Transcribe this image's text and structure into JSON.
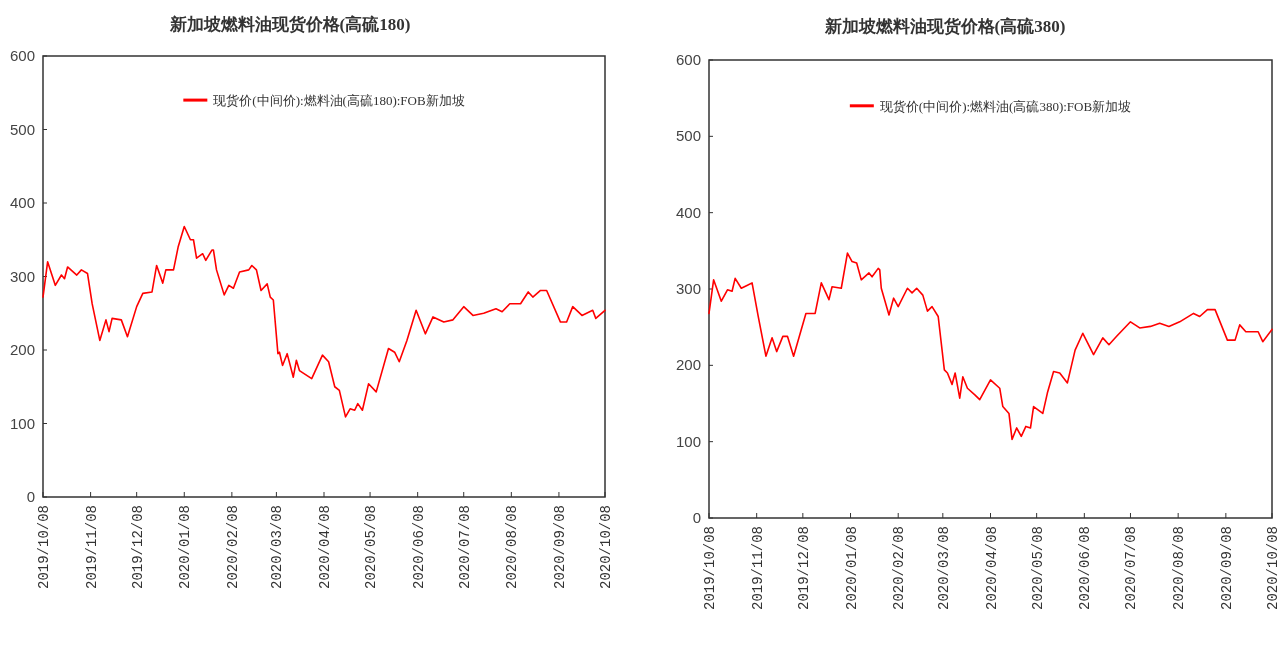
{
  "chart_data": [
    {
      "type": "line",
      "title": "新加坡燃料油现货价格(高硫180)",
      "legend": "top",
      "x": [
        "2019-10-08",
        "2019-10-11",
        "2019-10-16",
        "2019-10-20",
        "2019-10-22",
        "2019-10-24",
        "2019-10-30",
        "2019-11-02",
        "2019-11-06",
        "2019-11-09",
        "2019-11-14",
        "2019-11-18",
        "2019-11-20",
        "2019-11-22",
        "2019-11-28",
        "2019-12-02",
        "2019-12-08",
        "2019-12-12",
        "2019-12-18",
        "2019-12-21",
        "2019-12-25",
        "2019-12-27",
        "2020-01-01",
        "2020-01-04",
        "2020-01-08",
        "2020-01-12",
        "2020-01-14",
        "2020-01-16",
        "2020-01-20",
        "2020-01-22",
        "2020-01-26",
        "2020-01-27",
        "2020-01-29",
        "2020-02-03",
        "2020-02-06",
        "2020-02-09",
        "2020-02-13",
        "2020-02-19",
        "2020-02-21",
        "2020-02-24",
        "2020-02-27",
        "2020-03-02",
        "2020-03-04",
        "2020-03-06",
        "2020-03-09",
        "2020-03-10",
        "2020-03-12",
        "2020-03-15",
        "2020-03-19",
        "2020-03-21",
        "2020-03-23",
        "2020-03-31",
        "2020-04-07",
        "2020-04-11",
        "2020-04-15",
        "2020-04-18",
        "2020-04-22",
        "2020-04-25",
        "2020-04-28",
        "2020-04-30",
        "2020-05-03",
        "2020-05-07",
        "2020-05-12",
        "2020-05-20",
        "2020-05-24",
        "2020-05-27",
        "2020-06-01",
        "2020-06-07",
        "2020-06-13",
        "2020-06-18",
        "2020-06-25",
        "2020-07-01",
        "2020-07-08",
        "2020-07-14",
        "2020-07-21",
        "2020-07-29",
        "2020-08-02",
        "2020-08-07",
        "2020-08-14",
        "2020-08-19",
        "2020-08-22",
        "2020-08-27",
        "2020-08-31",
        "2020-09-09",
        "2020-09-13",
        "2020-09-17",
        "2020-09-23",
        "2020-09-30",
        "2020-10-02",
        "2020-10-08"
      ],
      "series": [
        {
          "name": "现货价(中间价):燃料油(高硫180):FOB新加坡",
          "color": "#ff0000",
          "values": [
            272,
            320,
            288,
            302,
            297,
            313,
            302,
            309,
            304,
            263,
            213,
            241,
            225,
            243,
            241,
            218,
            259,
            277,
            279,
            315,
            291,
            309,
            309,
            340,
            368,
            350,
            350,
            325,
            331,
            322,
            336,
            336,
            309,
            275,
            288,
            284,
            306,
            309,
            315,
            309,
            281,
            290,
            272,
            268,
            195,
            197,
            179,
            195,
            163,
            186,
            172,
            161,
            193,
            184,
            150,
            145,
            109,
            120,
            118,
            127,
            118,
            154,
            143,
            202,
            197,
            184,
            213,
            254,
            222,
            245,
            238,
            241,
            259,
            247,
            250,
            256,
            252,
            263,
            263,
            279,
            272,
            281,
            281,
            238,
            238,
            259,
            247,
            254,
            243,
            254
          ]
        }
      ],
      "xlim": [
        "2019-10-08",
        "2020-10-08"
      ],
      "xticks": [
        {
          "value": "2019-10-08",
          "label": "2019/10/08"
        },
        {
          "value": "2019-11-08",
          "label": "2019/11/08"
        },
        {
          "value": "2019-12-08",
          "label": "2019/12/08"
        },
        {
          "value": "2020-01-08",
          "label": "2020/01/08"
        },
        {
          "value": "2020-02-08",
          "label": "2020/02/08"
        },
        {
          "value": "2020-03-08",
          "label": "2020/03/08"
        },
        {
          "value": "2020-04-08",
          "label": "2020/04/08"
        },
        {
          "value": "2020-05-08",
          "label": "2020/05/08"
        },
        {
          "value": "2020-06-08",
          "label": "2020/06/08"
        },
        {
          "value": "2020-07-08",
          "label": "2020/07/08"
        },
        {
          "value": "2020-08-08",
          "label": "2020/08/08"
        },
        {
          "value": "2020-09-08",
          "label": "2020/09/08"
        },
        {
          "value": "2020-10-08",
          "label": "2020/10/08"
        }
      ],
      "ylim": [
        0,
        600
      ],
      "yticks": [
        0,
        100,
        200,
        300,
        400,
        500,
        600
      ]
    },
    {
      "type": "line",
      "title": "新加坡燃料油现货价格(高硫380)",
      "legend": "top",
      "x": [
        "2019-10-08",
        "2019-10-11",
        "2019-10-16",
        "2019-10-20",
        "2019-10-23",
        "2019-10-25",
        "2019-10-29",
        "2019-11-02",
        "2019-11-05",
        "2019-11-09",
        "2019-11-14",
        "2019-11-18",
        "2019-11-21",
        "2019-11-25",
        "2019-11-28",
        "2019-12-02",
        "2019-12-10",
        "2019-12-16",
        "2019-12-20",
        "2019-12-25",
        "2019-12-27",
        "2020-01-02",
        "2020-01-06",
        "2020-01-09",
        "2020-01-12",
        "2020-01-15",
        "2020-01-20",
        "2020-01-22",
        "2020-01-26",
        "2020-01-27",
        "2020-01-28",
        "2020-02-02",
        "2020-02-05",
        "2020-02-08",
        "2020-02-14",
        "2020-02-17",
        "2020-02-20",
        "2020-02-24",
        "2020-02-27",
        "2020-03-01",
        "2020-03-05",
        "2020-03-09",
        "2020-03-11",
        "2020-03-14",
        "2020-03-16",
        "2020-03-19",
        "2020-03-21",
        "2020-03-24",
        "2020-03-29",
        "2020-04-01",
        "2020-04-08",
        "2020-04-14",
        "2020-04-16",
        "2020-04-20",
        "2020-04-22",
        "2020-04-25",
        "2020-04-28",
        "2020-05-01",
        "2020-05-04",
        "2020-05-06",
        "2020-05-12",
        "2020-05-15",
        "2020-05-19",
        "2020-05-23",
        "2020-05-28",
        "2020-06-02",
        "2020-06-07",
        "2020-06-14",
        "2020-06-20",
        "2020-06-24",
        "2020-06-29",
        "2020-07-08",
        "2020-07-14",
        "2020-07-21",
        "2020-07-27",
        "2020-08-02",
        "2020-08-09",
        "2020-08-18",
        "2020-08-22",
        "2020-08-27",
        "2020-09-01",
        "2020-09-09",
        "2020-09-14",
        "2020-09-17",
        "2020-09-21",
        "2020-09-29",
        "2020-10-02",
        "2020-10-08"
      ],
      "series": [
        {
          "name": "现货价(中间价):燃料油(高硫380):FOB新加坡",
          "color": "#ff0000",
          "values": [
            268,
            312,
            284,
            299,
            297,
            314,
            301,
            305,
            308,
            264,
            212,
            236,
            218,
            238,
            238,
            212,
            268,
            268,
            308,
            286,
            303,
            301,
            347,
            336,
            334,
            312,
            321,
            316,
            327,
            325,
            301,
            266,
            288,
            277,
            301,
            295,
            301,
            292,
            271,
            277,
            264,
            194,
            190,
            175,
            190,
            157,
            185,
            170,
            161,
            155,
            181,
            170,
            146,
            137,
            103,
            118,
            107,
            120,
            118,
            146,
            137,
            164,
            192,
            190,
            177,
            220,
            242,
            214,
            236,
            227,
            238,
            257,
            249,
            251,
            255,
            251,
            257,
            268,
            264,
            273,
            273,
            233,
            233,
            253,
            244,
            244,
            231,
            247
          ]
        }
      ],
      "xlim": [
        "2019-10-08",
        "2020-10-08"
      ],
      "xticks": [
        {
          "value": "2019-10-08",
          "label": "2019/10/08"
        },
        {
          "value": "2019-11-08",
          "label": "2019/11/08"
        },
        {
          "value": "2019-12-08",
          "label": "2019/12/08"
        },
        {
          "value": "2020-01-08",
          "label": "2020/01/08"
        },
        {
          "value": "2020-02-08",
          "label": "2020/02/08"
        },
        {
          "value": "2020-03-08",
          "label": "2020/03/08"
        },
        {
          "value": "2020-04-08",
          "label": "2020/04/08"
        },
        {
          "value": "2020-05-08",
          "label": "2020/05/08"
        },
        {
          "value": "2020-06-08",
          "label": "2020/06/08"
        },
        {
          "value": "2020-07-08",
          "label": "2020/07/08"
        },
        {
          "value": "2020-08-08",
          "label": "2020/08/08"
        },
        {
          "value": "2020-09-08",
          "label": "2020/09/08"
        },
        {
          "value": "2020-10-08",
          "label": "2020/10/08"
        }
      ],
      "ylim": [
        0,
        600
      ],
      "yticks": [
        0,
        100,
        200,
        300,
        400,
        500,
        600
      ]
    }
  ]
}
